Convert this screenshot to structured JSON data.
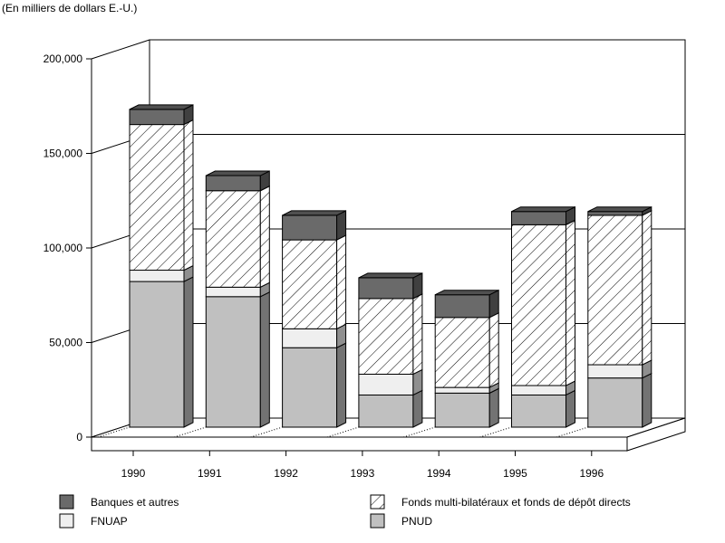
{
  "chart_data": {
    "type": "bar",
    "stacked": true,
    "three_d": true,
    "unit_note": "(En milliers de dollars E.-U.)",
    "title": "",
    "xlabel": "",
    "ylabel": "",
    "categories": [
      "1990",
      "1991",
      "1992",
      "1993",
      "1994",
      "1995",
      "1996"
    ],
    "ylim": [
      0,
      200000
    ],
    "y_ticks": [
      0,
      50000,
      100000,
      150000,
      200000
    ],
    "y_tick_labels": [
      "0",
      "50,000",
      "100,000",
      "150,000",
      "200,000"
    ],
    "grid": true,
    "legend_position": "bottom",
    "series": [
      {
        "name": "PNUD",
        "values": [
          77000,
          69000,
          42000,
          17000,
          18000,
          17000,
          26000
        ],
        "color": "#c0c0c0",
        "pattern": "solid"
      },
      {
        "name": "FNUAP",
        "values": [
          6000,
          5000,
          10000,
          11000,
          3000,
          5000,
          7000
        ],
        "color": "#efefef",
        "pattern": "solid"
      },
      {
        "name": "Fonds multi-bilatéraux et fonds de dépôt directs",
        "values": [
          77000,
          51000,
          47000,
          40000,
          37000,
          85000,
          79000
        ],
        "color": "#ffffff",
        "pattern": "hatch"
      },
      {
        "name": "Banques et autres",
        "values": [
          8000,
          8000,
          13000,
          11000,
          12000,
          7000,
          2000
        ],
        "color": "#6a6a6a",
        "pattern": "solid"
      }
    ],
    "legend_order": [
      "Banques et autres",
      "Fonds multi-bilatéraux et fonds de dépôt directs",
      "FNUAP",
      "PNUD"
    ]
  }
}
